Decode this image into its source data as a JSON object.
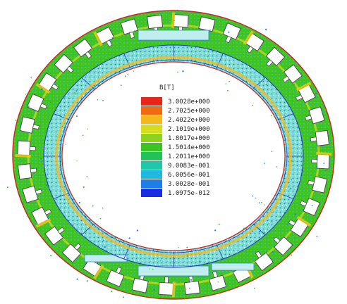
{
  "figure": {
    "legend": {
      "title": "B[T]",
      "entries": [
        {
          "label": "3.0028e+000",
          "color": "#e8261a"
        },
        {
          "label": "2.7025e+000",
          "color": "#f06a14"
        },
        {
          "label": "2.4022e+000",
          "color": "#f5b81c"
        },
        {
          "label": "2.1019e+000",
          "color": "#d8dc1e"
        },
        {
          "label": "1.8017e+000",
          "color": "#8fd21e"
        },
        {
          "label": "1.5014e+000",
          "color": "#3cc424"
        },
        {
          "label": "1.2011e+000",
          "color": "#22c25a"
        },
        {
          "label": "9.0083e-001",
          "color": "#1ec8a8"
        },
        {
          "label": "6.0056e-001",
          "color": "#1eb8e0"
        },
        {
          "label": "3.0028e-001",
          "color": "#1e7ee8"
        },
        {
          "label": "1.0975e-012",
          "color": "#1a2ee0"
        }
      ]
    },
    "colors": {
      "outer_boundary": "#d02020",
      "stator_field": "#3cc424",
      "airgap_field": "#5ed6d0",
      "slot_fill": "#ffffff",
      "slot_edge": "#444444",
      "hotspot": "#f5c81c",
      "inner_boundary": "#2030c0"
    }
  }
}
